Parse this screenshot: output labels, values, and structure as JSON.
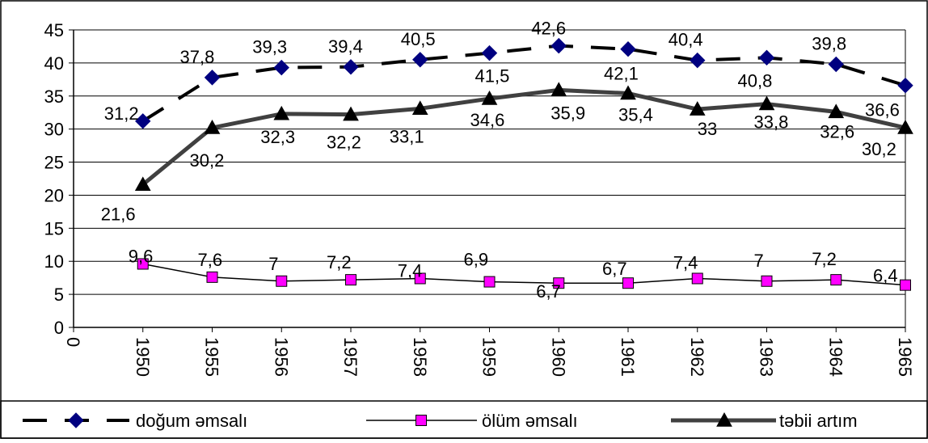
{
  "chart_data": {
    "type": "line",
    "title": "",
    "xlabel": "",
    "ylabel": "",
    "ylim": [
      0,
      45
    ],
    "yticks": [
      0,
      5,
      10,
      15,
      20,
      25,
      30,
      35,
      40,
      45
    ],
    "x_origin_label": "0",
    "categories": [
      "1950",
      "1955",
      "1956",
      "1957",
      "1958",
      "1959",
      "1960",
      "1961",
      "1962",
      "1963",
      "1964",
      "1965"
    ],
    "grid": true,
    "legend_position": "bottom",
    "series": [
      {
        "name": "doğum əmsalı",
        "values": [
          31.2,
          37.8,
          39.3,
          39.4,
          40.5,
          41.5,
          42.6,
          42.1,
          40.4,
          40.8,
          39.8,
          36.6
        ],
        "labels": [
          "31,2",
          "37,8",
          "39,3",
          "39,4",
          "40,5",
          "41,5",
          "42,6",
          "42,1",
          "40,4",
          "40,8",
          "39,8",
          "36,6"
        ],
        "color": "#000000",
        "marker_color": "#000080",
        "marker": "diamond",
        "line_style": "dashed"
      },
      {
        "name": "ölüm əmsalı",
        "values": [
          9.6,
          7.6,
          7,
          7.2,
          7.4,
          6.9,
          6.7,
          6.7,
          7.4,
          7,
          7.2,
          6.4
        ],
        "labels": [
          "9,6",
          "7,6",
          "7",
          "7,2",
          "7,4",
          "6,9",
          "6,7",
          "6,7",
          "7,4",
          "7",
          "7,2",
          "6,4"
        ],
        "color": "#000000",
        "marker_color": "#ff00ff",
        "marker": "square",
        "line_style": "solid-thin"
      },
      {
        "name": "təbii artım",
        "values": [
          21.6,
          30.2,
          32.3,
          32.2,
          33.1,
          34.6,
          35.9,
          35.4,
          33,
          33.8,
          32.6,
          30.2
        ],
        "labels": [
          "21,6",
          "30,2",
          "32,3",
          "32,2",
          "33,1",
          "34,6",
          "35,9",
          "35,4",
          "33",
          "33,8",
          "32,6",
          "30,2"
        ],
        "color": "#404040",
        "marker_color": "#000000",
        "marker": "triangle",
        "line_style": "solid-thick"
      }
    ]
  }
}
